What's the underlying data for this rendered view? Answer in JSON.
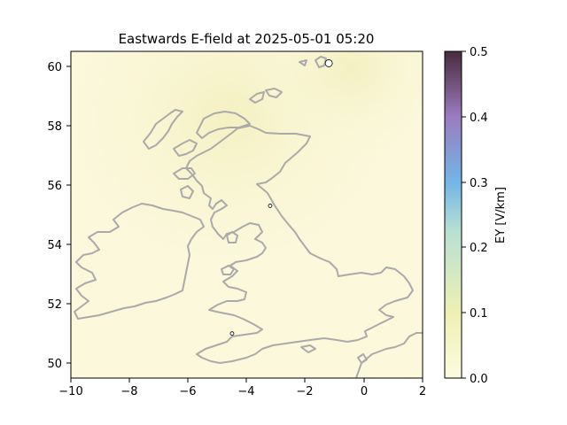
{
  "title": "Eastwards E-field at 2025-05-01 05:20",
  "colorbar": {
    "label": "EY [V/km]",
    "ticks": [
      "0.0",
      "0.1",
      "0.2",
      "0.3",
      "0.4",
      "0.5"
    ],
    "range": [
      0.0,
      0.5
    ],
    "colors": [
      "#fdfbe1",
      "#eef0b4",
      "#b8e0d2",
      "#72b5e6",
      "#9a7cbf",
      "#4a2a3c"
    ]
  },
  "map": {
    "x_ticks": [
      "−10",
      "−8",
      "−6",
      "−4",
      "−2",
      "0",
      "2"
    ],
    "y_ticks": [
      "50",
      "52",
      "54",
      "56",
      "58",
      "60"
    ],
    "lon_range": [
      -10,
      2
    ],
    "lat_range": [
      49.5,
      60.5
    ],
    "background_color": "#fbf8dc",
    "coast_color": "#aaaaaa"
  },
  "stations": [
    {
      "lon": -1.2,
      "lat": 60.1
    },
    {
      "lon": -3.2,
      "lat": 55.3
    },
    {
      "lon": -4.5,
      "lat": 51.0
    }
  ]
}
